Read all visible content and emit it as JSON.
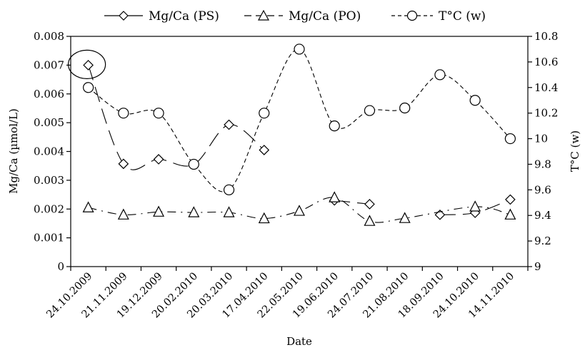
{
  "chart_data": {
    "type": "line",
    "xlabel": "Date",
    "ylabel_left": "Mg/Ca (µmol/L)",
    "ylabel_right": "T°C (w)",
    "categories": [
      "24.10.2009",
      "21.11.2009",
      "19.12.2009",
      "20.02.2010",
      "20.03.2010",
      "17.04.2010",
      "22.05.2010",
      "19.06.2010",
      "24.07.2010",
      "21.08.2010",
      "18.09.2010",
      "24.10.2010",
      "14.11.2010"
    ],
    "ylim_left": [
      0,
      0.008
    ],
    "yticks_left": [
      "0",
      "0.001",
      "0.002",
      "0.003",
      "0.004",
      "0.005",
      "0.006",
      "0.007",
      "0.008"
    ],
    "ylim_right": [
      9,
      10.8
    ],
    "yticks_right": [
      "9",
      "9.2",
      "9.4",
      "9.6",
      "9.8",
      "10",
      "10.2",
      "10.4",
      "10.6",
      "10.8"
    ],
    "series": [
      {
        "name": "Mg/Ca (PS)",
        "axis": "left",
        "marker": "diamond",
        "dash": "22,10",
        "values": [
          0.007,
          0.00357,
          0.00373,
          0.00355,
          0.00493,
          0.00405,
          null,
          0.0023,
          0.00217,
          null,
          0.0018,
          0.00187,
          0.00233
        ]
      },
      {
        "name": "Mg/Ca (PO)",
        "axis": "left",
        "marker": "triangle",
        "dash": "12,7,2,7",
        "values": [
          0.00205,
          0.0018,
          0.0019,
          0.00188,
          0.00188,
          0.00167,
          0.00193,
          0.0024,
          0.00158,
          0.00168,
          null,
          0.00208,
          0.0018
        ]
      },
      {
        "name": "T°C (w)",
        "axis": "right",
        "marker": "circle",
        "dash": "6,4",
        "values": [
          10.4,
          10.2,
          10.2,
          9.8,
          9.6,
          10.2,
          10.7,
          10.1,
          10.22,
          10.24,
          10.5,
          10.3,
          10.0
        ]
      }
    ],
    "annotation": "circle around first Mg/Ca (PS) point",
    "grid": false,
    "legend": "top"
  }
}
